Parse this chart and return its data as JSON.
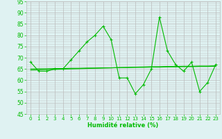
{
  "x": [
    0,
    1,
    2,
    3,
    4,
    5,
    6,
    7,
    8,
    9,
    10,
    11,
    12,
    13,
    14,
    15,
    16,
    17,
    18,
    19,
    20,
    21,
    22,
    23
  ],
  "y_main": [
    68,
    64,
    64,
    65,
    65,
    69,
    73,
    77,
    80,
    84,
    78,
    61,
    61,
    54,
    58,
    65,
    88,
    73,
    67,
    64,
    68,
    55,
    59,
    67
  ],
  "y_trend1": [
    64.5,
    64.6,
    64.7,
    64.8,
    64.9,
    65.0,
    65.1,
    65.2,
    65.3,
    65.4,
    65.5,
    65.6,
    65.7,
    65.8,
    65.9,
    66.0,
    66.0,
    66.1,
    66.1,
    66.2,
    66.2,
    66.3,
    66.3,
    66.4
  ],
  "y_trend2": [
    65.0,
    65.1,
    65.1,
    65.2,
    65.2,
    65.3,
    65.3,
    65.4,
    65.4,
    65.5,
    65.5,
    65.6,
    65.6,
    65.7,
    65.7,
    65.8,
    65.8,
    65.9,
    65.9,
    66.0,
    66.0,
    66.1,
    66.1,
    66.2
  ],
  "xlabel": "Humidité relative (%)",
  "line_color": "#00bb00",
  "bg_color": "#dff2f2",
  "grid_color": "#bbbbbb",
  "ylim": [
    45,
    95
  ],
  "yticks": [
    45,
    50,
    55,
    60,
    65,
    70,
    75,
    80,
    85,
    90,
    95
  ],
  "xticks": [
    0,
    1,
    2,
    3,
    4,
    5,
    6,
    7,
    8,
    9,
    10,
    11,
    12,
    13,
    14,
    15,
    16,
    17,
    18,
    19,
    20,
    21,
    22,
    23
  ]
}
